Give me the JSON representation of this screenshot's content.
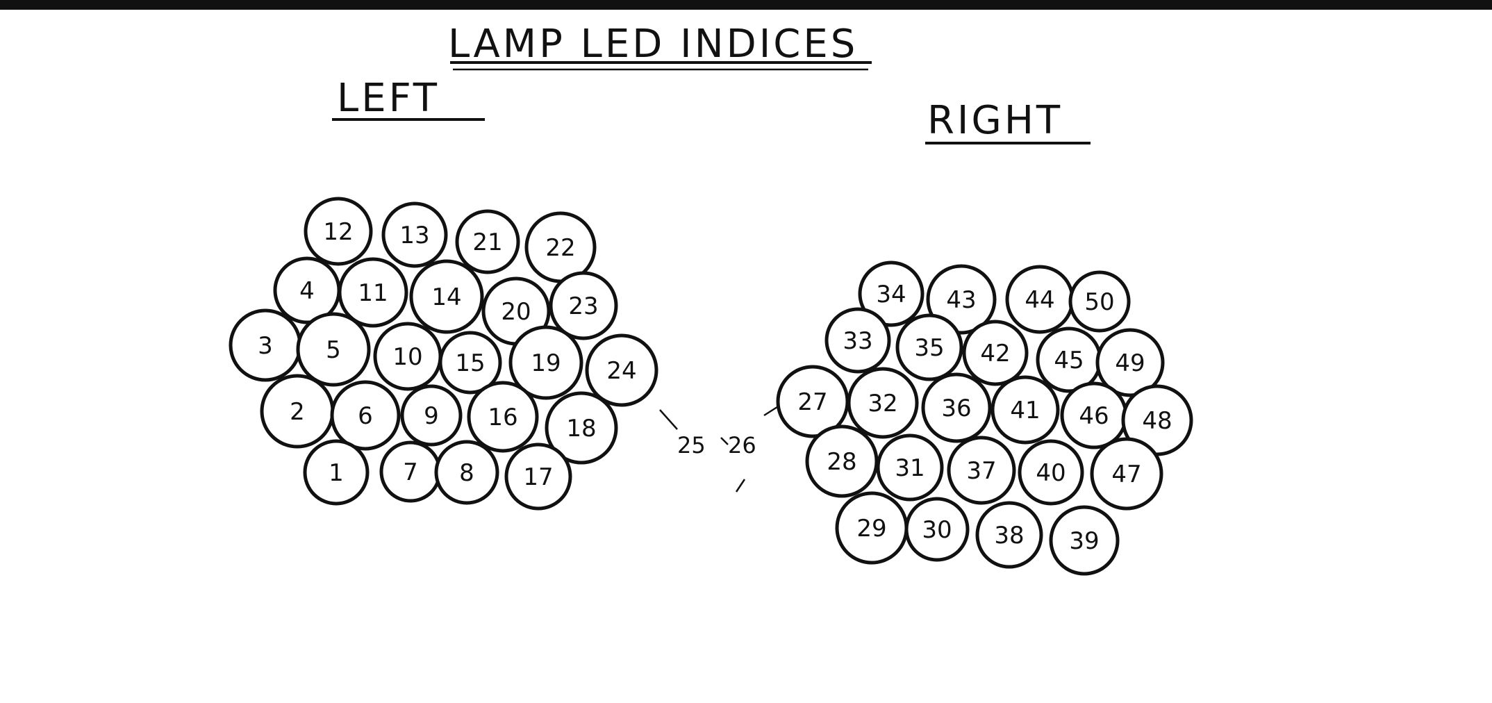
{
  "title": "LAMP LED INDICES",
  "sections": {
    "left": {
      "heading": "LEFT"
    },
    "right": {
      "heading": "RIGHT"
    }
  },
  "connectors": [
    "25",
    "26"
  ],
  "leds": {
    "left": [
      "12",
      "13",
      "21",
      "22",
      "4",
      "11",
      "14",
      "20",
      "23",
      "3",
      "5",
      "10",
      "15",
      "19",
      "24",
      "2",
      "6",
      "9",
      "16",
      "18",
      "1",
      "7",
      "8",
      "17"
    ],
    "right": [
      "34",
      "43",
      "44",
      "50",
      "33",
      "35",
      "42",
      "45",
      "49",
      "27",
      "32",
      "36",
      "41",
      "46",
      "48",
      "28",
      "31",
      "37",
      "40",
      "47",
      "29",
      "30",
      "38",
      "39"
    ]
  },
  "colors": {
    "ink": "#111111",
    "paper": "#ffffff"
  }
}
